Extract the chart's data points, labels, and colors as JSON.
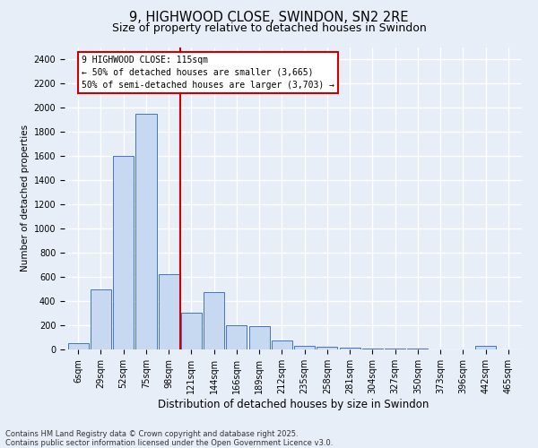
{
  "title1": "9, HIGHWOOD CLOSE, SWINDON, SN2 2RE",
  "title2": "Size of property relative to detached houses in Swindon",
  "xlabel": "Distribution of detached houses by size in Swindon",
  "ylabel": "Number of detached properties",
  "categories": [
    "6sqm",
    "29sqm",
    "52sqm",
    "75sqm",
    "98sqm",
    "121sqm",
    "144sqm",
    "166sqm",
    "189sqm",
    "212sqm",
    "235sqm",
    "258sqm",
    "281sqm",
    "304sqm",
    "327sqm",
    "350sqm",
    "373sqm",
    "396sqm",
    "442sqm",
    "465sqm"
  ],
  "values": [
    50,
    500,
    1600,
    1950,
    620,
    305,
    475,
    200,
    190,
    75,
    30,
    20,
    13,
    8,
    8,
    5,
    3,
    0,
    28,
    0
  ],
  "bar_color": "#c6d9f0",
  "bar_edge_color": "#4472c4",
  "vline_color": "#cc0000",
  "annotation_box_edge": "#cc0000",
  "ylim": [
    0,
    2500
  ],
  "yticks": [
    0,
    200,
    400,
    600,
    800,
    1000,
    1200,
    1400,
    1600,
    1800,
    2000,
    2200,
    2400
  ],
  "footnote1": "Contains HM Land Registry data © Crown copyright and database right 2025.",
  "footnote2": "Contains public sector information licensed under the Open Government Licence v3.0.",
  "bg_color": "#e8eef8",
  "title1_fontsize": 10.5,
  "title2_fontsize": 9,
  "vline_label": "9 HIGHWOOD CLOSE: 115sqm",
  "annotation_smaller": "← 50% of detached houses are smaller (3,665)",
  "annotation_larger": "50% of semi-detached houses are larger (3,703) →",
  "footnote_fontsize": 6.0,
  "ylabel_fontsize": 7.5,
  "xlabel_fontsize": 8.5,
  "tick_fontsize": 7.0,
  "annotation_fontsize": 7.0
}
